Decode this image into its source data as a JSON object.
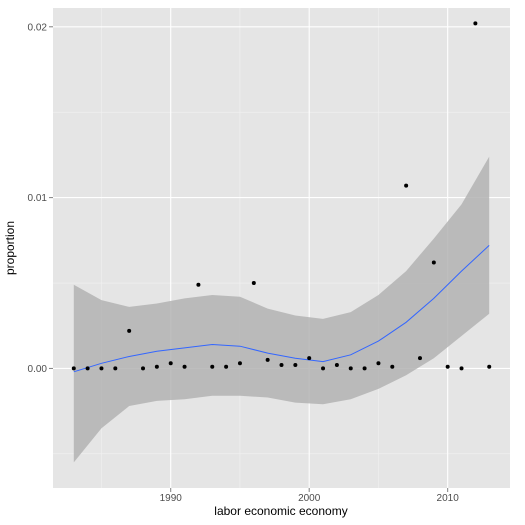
{
  "chart_data": {
    "type": "scatter",
    "title": "",
    "xlabel": "labor economic economy",
    "ylabel": "proportion",
    "xlim": [
      1981.5,
      2014.5
    ],
    "ylim": [
      -0.007,
      0.0211
    ],
    "x_ticks": [
      1990,
      2000,
      2010
    ],
    "x_tick_labels": [
      "1990",
      "2000",
      "2010"
    ],
    "y_ticks": [
      0.0,
      0.01,
      0.02
    ],
    "y_tick_labels": [
      "0.00",
      "0.01",
      "0.02"
    ],
    "grid": true,
    "colors": {
      "panel": "#e5e5e5",
      "grid_major": "#ffffff",
      "grid_minor": "#f2f2f2",
      "points": "#000000",
      "smooth_line": "#3366ff",
      "ribbon": "#b3b3b3",
      "tick_label": "#4d4d4d",
      "axis_title": "#000000"
    },
    "points": {
      "x": [
        1983,
        1984,
        1985,
        1986,
        1987,
        1988,
        1989,
        1990,
        1991,
        1992,
        1993,
        1994,
        1995,
        1996,
        1997,
        1998,
        1999,
        2000,
        2001,
        2002,
        2003,
        2004,
        2005,
        2006,
        2007,
        2008,
        2009,
        2010,
        2011,
        2012,
        2013
      ],
      "y": [
        0.0,
        0.0,
        0.0,
        0.0,
        0.0022,
        0.0,
        0.0001,
        0.0003,
        0.0001,
        0.0049,
        0.0001,
        0.0001,
        0.0003,
        0.005,
        0.0005,
        0.0002,
        0.0002,
        0.0006,
        0.0,
        0.0002,
        0.0,
        0.0,
        0.0003,
        0.0001,
        0.0107,
        0.0006,
        0.0062,
        0.0001,
        0.0,
        0.0202,
        0.0001
      ]
    },
    "smooth": {
      "x": [
        1983,
        1985,
        1987,
        1989,
        1991,
        1993,
        1995,
        1997,
        1999,
        2001,
        2003,
        2005,
        2007,
        2009,
        2011,
        2013
      ],
      "y": [
        -0.0002,
        0.0003,
        0.0007,
        0.001,
        0.0012,
        0.0014,
        0.0013,
        0.0009,
        0.0006,
        0.0004,
        0.0008,
        0.0016,
        0.0027,
        0.0041,
        0.0057,
        0.0072
      ],
      "lower": [
        -0.0055,
        -0.0035,
        -0.0022,
        -0.0019,
        -0.0018,
        -0.0016,
        -0.0016,
        -0.0017,
        -0.002,
        -0.0021,
        -0.0018,
        -0.0012,
        -0.0004,
        0.0006,
        0.0019,
        0.0032
      ],
      "upper": [
        0.0049,
        0.004,
        0.0036,
        0.0038,
        0.0041,
        0.0043,
        0.0042,
        0.0035,
        0.0031,
        0.0029,
        0.0033,
        0.0043,
        0.0057,
        0.0076,
        0.0096,
        0.0124
      ]
    }
  }
}
